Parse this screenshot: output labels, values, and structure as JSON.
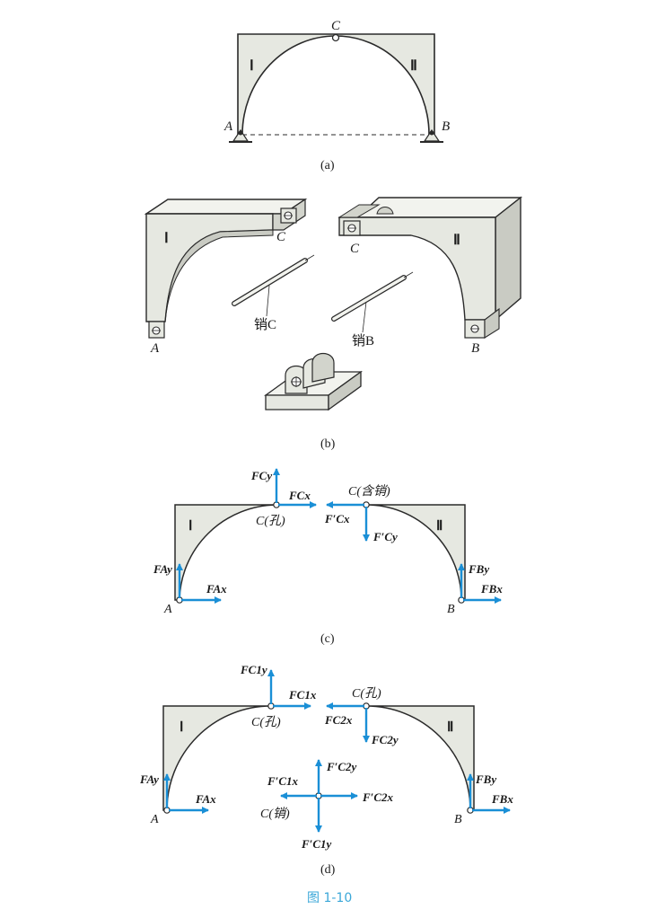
{
  "figure": {
    "caption": "图 1-10",
    "panels": {
      "a": {
        "label": "(a)",
        "point_A": "A",
        "point_B": "B",
        "point_C": "C",
        "part1": "Ⅰ",
        "part2": "Ⅱ"
      },
      "b": {
        "label": "(b)",
        "part1": "Ⅰ",
        "part2": "Ⅱ",
        "point_A": "A",
        "point_B": "B",
        "point_C1": "C",
        "point_C2": "C",
        "pin_C": "销C",
        "pin_B": "销B"
      },
      "c": {
        "label": "(c)",
        "part1": "Ⅰ",
        "part2": "Ⅱ",
        "point_A": "A",
        "point_B": "B",
        "c_hole": "C(孔)",
        "c_pin": "C(含销)",
        "forces": {
          "FCy": "FCy",
          "FCx": "FCx",
          "FAy": "FAy",
          "FAx": "FAx",
          "FpCx": "F′Cx",
          "FpCy": "F′Cy",
          "FBy": "FBy",
          "FBx": "FBx"
        }
      },
      "d": {
        "label": "(d)",
        "part1": "Ⅰ",
        "part2": "Ⅱ",
        "point_A": "A",
        "point_B": "B",
        "c_hole_left": "C(孔)",
        "c_hole_right": "C(孔)",
        "c_pin": "C(销)",
        "forces": {
          "FC1y": "FC1y",
          "FC1x": "FC1x",
          "FC2x": "FC2x",
          "FC2y": "FC2y",
          "FAy": "FAy",
          "FAx": "FAx",
          "FBy": "FBy",
          "FBx": "FBx",
          "FpC2y": "F′C2y",
          "FpC1x": "F′C1x",
          "FpC2x": "F′C2x",
          "FpC1y": "F′C1y"
        }
      }
    },
    "colors": {
      "arrow": "#1a8fd6",
      "body_fill": "#e6e8e1",
      "stroke": "#2a2a2a",
      "caption": "#3aa7d8"
    }
  }
}
